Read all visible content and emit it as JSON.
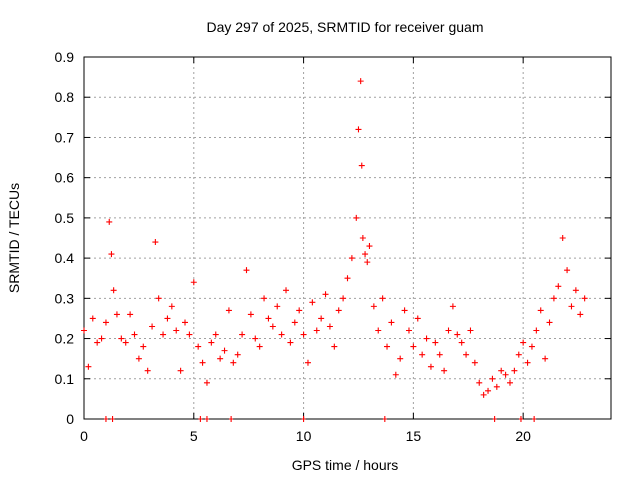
{
  "chart_data": {
    "type": "scatter",
    "title": "Day 297 of 2025, SRMTID for receiver guam",
    "xlabel": "GPS time / hours",
    "ylabel": "SRMTID / TECUs",
    "xlim": [
      0,
      24
    ],
    "ylim": [
      0,
      0.9
    ],
    "xticks": [
      "0",
      "5",
      "10",
      "15",
      "20"
    ],
    "yticks": [
      "0",
      "0.1",
      "0.2",
      "0.3",
      "0.4",
      "0.5",
      "0.6",
      "0.7",
      "0.8",
      "0.9"
    ],
    "grid": true,
    "marker": "+",
    "color": "#ff0000",
    "series": [
      {
        "name": "SRMTID",
        "x": [
          0.0,
          0.2,
          0.4,
          0.6,
          0.8,
          1.0,
          1.15,
          1.25,
          1.35,
          1.5,
          1.7,
          1.9,
          2.1,
          2.3,
          2.5,
          2.7,
          2.9,
          3.1,
          3.25,
          3.4,
          3.6,
          3.8,
          4.0,
          4.2,
          4.4,
          4.6,
          4.8,
          5.0,
          5.2,
          5.4,
          5.6,
          5.8,
          6.0,
          6.2,
          6.4,
          6.6,
          6.8,
          7.0,
          7.2,
          7.4,
          7.6,
          7.8,
          8.0,
          8.2,
          8.4,
          8.6,
          8.8,
          9.0,
          9.2,
          9.4,
          9.6,
          9.8,
          10.0,
          10.2,
          10.4,
          10.6,
          10.8,
          11.0,
          11.2,
          11.4,
          11.6,
          11.8,
          12.0,
          12.2,
          12.4,
          12.5,
          12.6,
          12.65,
          12.7,
          12.8,
          12.9,
          13.0,
          13.2,
          13.4,
          13.6,
          13.8,
          14.0,
          14.2,
          14.4,
          14.6,
          14.8,
          15.0,
          15.2,
          15.4,
          15.6,
          15.8,
          16.0,
          16.2,
          16.4,
          16.6,
          16.8,
          17.0,
          17.2,
          17.4,
          17.6,
          17.8,
          18.0,
          18.2,
          18.4,
          18.6,
          18.8,
          19.0,
          19.2,
          19.4,
          19.6,
          19.8,
          20.0,
          20.2,
          20.4,
          20.6,
          20.8,
          21.0,
          21.2,
          21.4,
          21.6,
          21.8,
          22.0,
          22.2,
          22.4,
          22.6,
          22.8
        ],
        "y": [
          0.22,
          0.13,
          0.25,
          0.19,
          0.2,
          0.24,
          0.49,
          0.41,
          0.32,
          0.26,
          0.2,
          0.19,
          0.26,
          0.21,
          0.15,
          0.18,
          0.12,
          0.23,
          0.44,
          0.3,
          0.21,
          0.25,
          0.28,
          0.22,
          0.12,
          0.24,
          0.21,
          0.34,
          0.18,
          0.14,
          0.09,
          0.19,
          0.21,
          0.15,
          0.17,
          0.27,
          0.14,
          0.16,
          0.21,
          0.37,
          0.26,
          0.2,
          0.18,
          0.3,
          0.25,
          0.23,
          0.28,
          0.21,
          0.32,
          0.19,
          0.24,
          0.27,
          0.21,
          0.14,
          0.29,
          0.22,
          0.25,
          0.31,
          0.23,
          0.18,
          0.27,
          0.3,
          0.35,
          0.4,
          0.5,
          0.72,
          0.84,
          0.63,
          0.45,
          0.41,
          0.39,
          0.43,
          0.28,
          0.22,
          0.3,
          0.18,
          0.24,
          0.11,
          0.15,
          0.27,
          0.22,
          0.18,
          0.25,
          0.16,
          0.2,
          0.13,
          0.19,
          0.16,
          0.12,
          0.22,
          0.28,
          0.21,
          0.19,
          0.16,
          0.22,
          0.14,
          0.09,
          0.06,
          0.07,
          0.1,
          0.08,
          0.12,
          0.11,
          0.09,
          0.12,
          0.16,
          0.19,
          0.14,
          0.18,
          0.22,
          0.27,
          0.15,
          0.24,
          0.3,
          0.33,
          0.45,
          0.37,
          0.28,
          0.32,
          0.26,
          0.3
        ]
      }
    ],
    "bottom_markers_x": [
      1.0,
      1.3,
      5.3,
      5.6,
      6.7,
      10.0,
      13.7,
      18.7,
      19.9,
      20.5
    ]
  }
}
